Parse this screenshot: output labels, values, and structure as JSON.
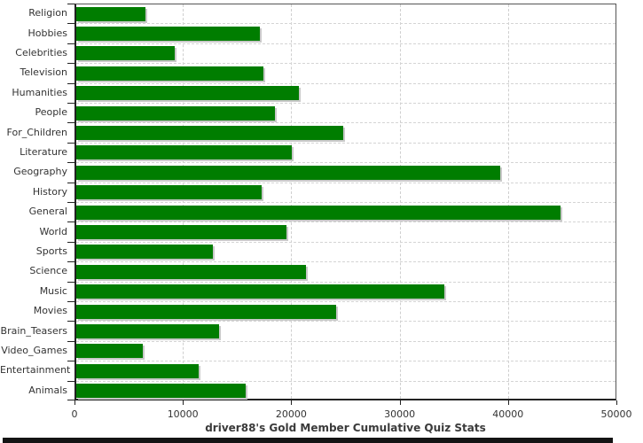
{
  "chart_data": {
    "type": "bar",
    "orientation": "horizontal",
    "title": "driver88's Gold Member Cumulative Quiz Stats",
    "categories": [
      "Religion",
      "Hobbies",
      "Celebrities",
      "Television",
      "Humanities",
      "People",
      "For_Children",
      "Literature",
      "Geography",
      "History",
      "General",
      "World",
      "Sports",
      "Science",
      "Music",
      "Movies",
      "Brain_Teasers",
      "Video_Games",
      "Entertainment",
      "Animals"
    ],
    "values": [
      6400,
      16900,
      9100,
      17300,
      20500,
      18300,
      24600,
      19900,
      39100,
      17100,
      44700,
      19400,
      12600,
      21200,
      34000,
      24000,
      13200,
      6100,
      11300,
      15600
    ],
    "xlim": [
      0,
      50000
    ],
    "x_ticks": [
      0,
      10000,
      20000,
      30000,
      40000,
      50000
    ],
    "x_tick_labels": [
      "0",
      "10000",
      "20000",
      "30000",
      "40000",
      "50000"
    ],
    "xlabel": "",
    "ylabel": "",
    "grid": true,
    "legend": false,
    "bar_color": "#007d00",
    "bar_shadow_color": "#c9c9c9",
    "grid_color": "#cfcfcf",
    "text_color": "#333333"
  }
}
